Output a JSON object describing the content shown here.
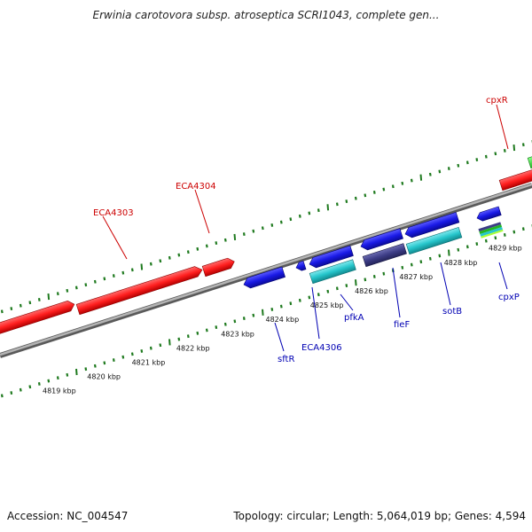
{
  "title": "Erwinia carotovora subsp. atroseptica SCRI1043, complete gen...",
  "footer": {
    "accession": "Accession: NC_004547",
    "summary": "Topology: circular; Length: 5,064,019 bp; Genes: 4,594"
  },
  "colors": {
    "forward_gene": "#ff1f1f",
    "reverse_gene": "#1a1ae6",
    "cds_feature": "#26c6cc",
    "other_feature": "#3d3d86",
    "backbone": "#8c8c8c",
    "tick": "#1f7a1f",
    "forward_label": "#cc0000",
    "reverse_label": "#0000b3"
  },
  "ruler": {
    "ticks": [
      {
        "label": "4819 kbp"
      },
      {
        "label": "4820 kbp"
      },
      {
        "label": "4821 kbp"
      },
      {
        "label": "4822 kbp"
      },
      {
        "label": "4823 kbp"
      },
      {
        "label": "4824 kbp"
      },
      {
        "label": "4825 kbp"
      },
      {
        "label": "4826 kbp"
      },
      {
        "label": "4827 kbp"
      },
      {
        "label": "4828 kbp"
      },
      {
        "label": "4829 kbp"
      }
    ]
  },
  "gene_labels": {
    "forward": [
      "ECA4303",
      "ECA4304",
      "cpxR"
    ],
    "reverse": [
      "sftR",
      "ECA4306",
      "pfkA",
      "fieF",
      "sotB",
      "cpxP"
    ]
  }
}
